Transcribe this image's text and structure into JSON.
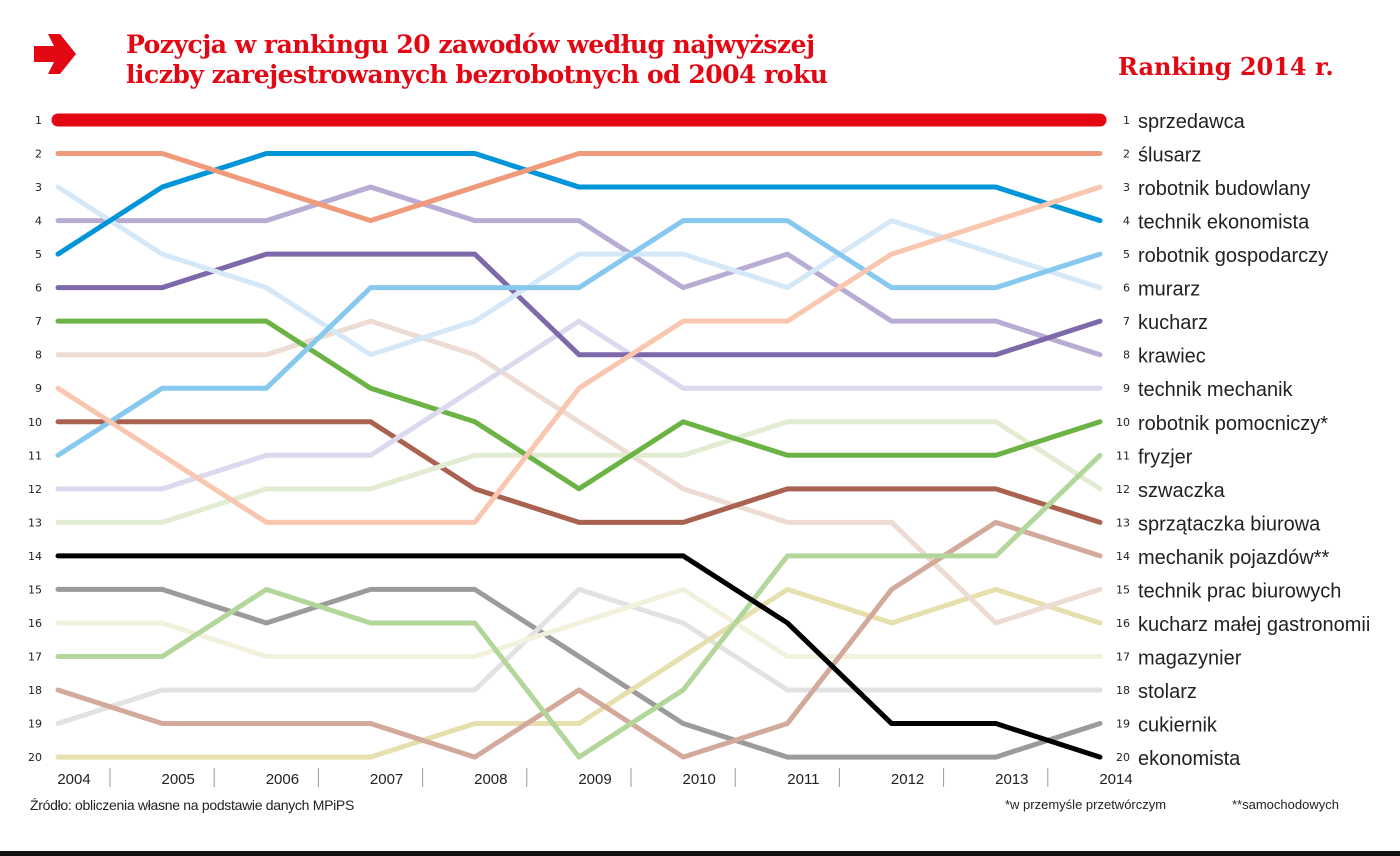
{
  "header": {
    "title_line1": "Pozycja w rankingu 20 zawodów według najwyższej",
    "title_line2": "liczby zarejestrowanych bezrobotnych od 2004 roku",
    "ranking_title": "Ranking 2014 r.",
    "arrow_icon": "right-arrow-icon",
    "accent_color": "#e30613"
  },
  "footer": {
    "source": "Źródło: obliczenia własne na podstawie danych MPiPS",
    "note1": "*w przemyśle przetwórczym",
    "note2": "**samochodowych"
  },
  "chart_data": {
    "type": "line",
    "subtype": "bump",
    "x": [
      2004,
      2005,
      2006,
      2007,
      2008,
      2009,
      2010,
      2011,
      2012,
      2013,
      2014
    ],
    "x_tick_labels": [
      "2004",
      "2005",
      "2006",
      "2007",
      "2008",
      "2009",
      "2010",
      "2011",
      "2012",
      "2013",
      "2014"
    ],
    "y_tick_labels": [
      "1",
      "2",
      "3",
      "4",
      "5",
      "6",
      "7",
      "8",
      "9",
      "10",
      "11",
      "12",
      "13",
      "14",
      "15",
      "16",
      "17",
      "18",
      "19",
      "20"
    ],
    "ylim": [
      1,
      20
    ],
    "y_inverted": true,
    "grid": false,
    "legend": "right (labels at line ends)",
    "series": [
      {
        "name": "sprzedawca",
        "color": "#e30613",
        "values": [
          1,
          1,
          1,
          1,
          1,
          1,
          1,
          1,
          1,
          1,
          1
        ]
      },
      {
        "name": "ślusarz",
        "color": "#f09a7c",
        "values": [
          2,
          2,
          3,
          4,
          3,
          2,
          2,
          2,
          2,
          2,
          2
        ]
      },
      {
        "name": "robotnik budowlany",
        "color": "#f9c6b0",
        "values": [
          9,
          11,
          13,
          13,
          13,
          9,
          7,
          7,
          5,
          4,
          3
        ]
      },
      {
        "name": "technik ekonomista",
        "color": "#0095d9",
        "values": [
          5,
          3,
          2,
          2,
          2,
          3,
          3,
          3,
          3,
          3,
          4
        ]
      },
      {
        "name": "robotnik gospodarczy",
        "color": "#86c8ee",
        "values": [
          11,
          9,
          9,
          6,
          6,
          6,
          4,
          4,
          6,
          6,
          5
        ]
      },
      {
        "name": "murarz",
        "color": "#d4e8f7",
        "values": [
          3,
          5,
          6,
          8,
          7,
          5,
          5,
          6,
          4,
          5,
          6
        ]
      },
      {
        "name": "kucharz",
        "color": "#7d68aa",
        "values": [
          6,
          6,
          5,
          5,
          5,
          8,
          8,
          8,
          8,
          8,
          7
        ]
      },
      {
        "name": "krawiec",
        "color": "#b8acd4",
        "values": [
          4,
          4,
          4,
          3,
          4,
          4,
          6,
          5,
          7,
          7,
          8
        ]
      },
      {
        "name": "technik mechanik",
        "color": "#dcd8ee",
        "values": [
          12,
          12,
          11,
          11,
          9,
          7,
          9,
          9,
          9,
          9,
          9
        ]
      },
      {
        "name": "robotnik pomocniczy*",
        "color": "#6ab344",
        "values": [
          7,
          7,
          7,
          9,
          10,
          12,
          10,
          11,
          11,
          11,
          10
        ]
      },
      {
        "name": "fryzjer",
        "color": "#b3d69a",
        "values": [
          17,
          17,
          15,
          16,
          16,
          20,
          18,
          14,
          14,
          14,
          11
        ]
      },
      {
        "name": "szwaczka",
        "color": "#e2ecd3",
        "values": [
          13,
          13,
          12,
          12,
          11,
          11,
          11,
          10,
          10,
          10,
          12
        ]
      },
      {
        "name": "sprzątaczka biurowa",
        "color": "#a8624f",
        "values": [
          10,
          10,
          10,
          10,
          12,
          13,
          13,
          12,
          12,
          12,
          13
        ]
      },
      {
        "name": "mechanik pojazdów**",
        "color": "#d2a99b",
        "values": [
          18,
          19,
          19,
          19,
          20,
          18,
          20,
          19,
          15,
          13,
          14
        ]
      },
      {
        "name": "technik prac biurowych",
        "color": "#eddcd3",
        "values": [
          8,
          8,
          8,
          7,
          8,
          10,
          12,
          13,
          13,
          16,
          15
        ]
      },
      {
        "name": "kucharz małej gastronomii",
        "color": "#e6dfae",
        "values": [
          20,
          20,
          20,
          20,
          19,
          19,
          17,
          15,
          16,
          15,
          16
        ]
      },
      {
        "name": "magazynier",
        "color": "#f1f1dd",
        "values": [
          16,
          16,
          17,
          17,
          17,
          16,
          15,
          17,
          17,
          17,
          17
        ]
      },
      {
        "name": "stolarz",
        "color": "#e2e2e2",
        "values": [
          19,
          18,
          18,
          18,
          18,
          15,
          16,
          18,
          18,
          18,
          18
        ]
      },
      {
        "name": "cukiernik",
        "color": "#9b9b9b",
        "values": [
          15,
          15,
          16,
          15,
          15,
          17,
          19,
          20,
          20,
          20,
          19
        ]
      },
      {
        "name": "ekonomista",
        "color": "#000000",
        "values": [
          14,
          14,
          14,
          14,
          14,
          14,
          14,
          16,
          19,
          19,
          20
        ]
      }
    ]
  }
}
